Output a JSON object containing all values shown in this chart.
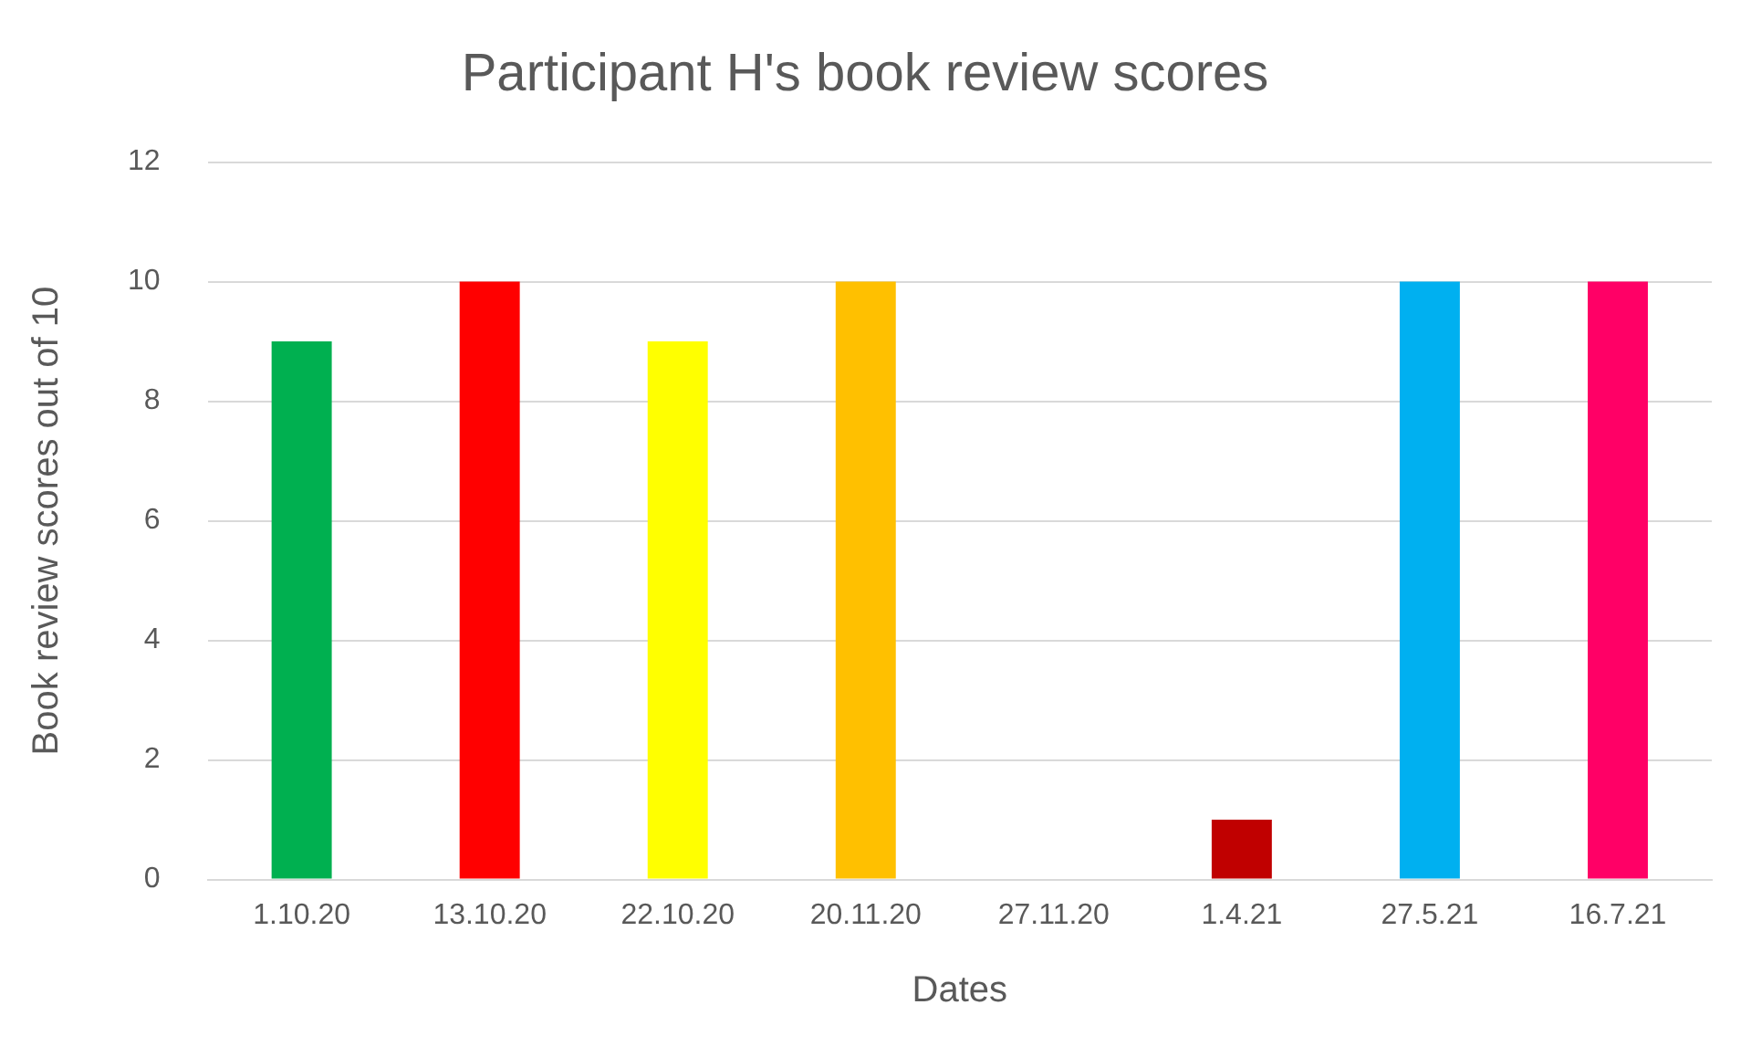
{
  "chart_data": {
    "type": "bar",
    "title": "Participant H's book review scores",
    "xlabel": "Dates",
    "ylabel": "Book review scores out of 10",
    "categories": [
      "1.10.20",
      "13.10.20",
      "22.10.20",
      "20.11.20",
      "27.11.20",
      "1.4.21",
      "27.5.21",
      "16.7.21"
    ],
    "values": [
      9,
      10,
      9,
      10,
      0,
      1,
      10,
      10
    ],
    "colors": [
      "#00b050",
      "#ff0000",
      "#ffff00",
      "#ffc000",
      "#808080",
      "#c00000",
      "#00b0f0",
      "#ff0066"
    ],
    "ylim": [
      0,
      12
    ],
    "yticks": [
      0,
      2,
      4,
      6,
      8,
      10,
      12
    ],
    "grid": "y",
    "legend": false
  }
}
